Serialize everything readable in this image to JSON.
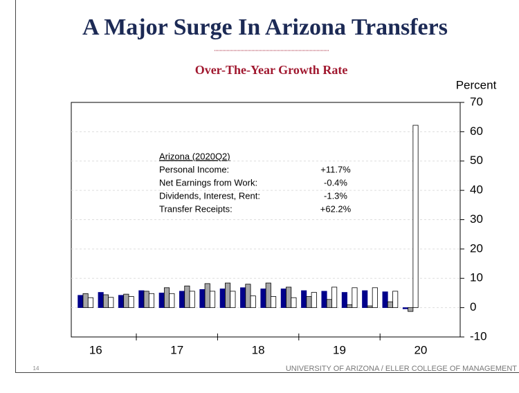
{
  "chart_data": {
    "type": "bar",
    "title": "A Major Surge In Arizona Transfers",
    "subtitle": "Over-The-Year Growth Rate",
    "y_label": "Percent",
    "categories": [
      null,
      null,
      null,
      null,
      null,
      null,
      null,
      null,
      null,
      null,
      null,
      null,
      null,
      null,
      null,
      null,
      null
    ],
    "year_labels": [
      "16",
      "17",
      "18",
      "19",
      "20"
    ],
    "series": [
      {
        "name": "Net Earnings from Work",
        "color": "#00008b",
        "values": [
          4.2,
          5.2,
          4.2,
          5.8,
          5.0,
          5.6,
          6.2,
          6.4,
          6.8,
          6.4,
          6.4,
          5.8,
          5.6,
          5.2,
          5.8,
          5.4,
          -0.4
        ]
      },
      {
        "name": "Dividends, Interest, Rent",
        "color": "#a6a6a6",
        "values": [
          4.8,
          4.4,
          4.6,
          5.6,
          6.8,
          7.4,
          8.2,
          8.4,
          8.0,
          8.4,
          7.0,
          3.8,
          2.8,
          1.0,
          0.6,
          2.0,
          -1.3
        ]
      },
      {
        "name": "Transfer Receipts",
        "color": "#ffffff",
        "values": [
          3.4,
          3.5,
          3.8,
          4.8,
          4.8,
          5.6,
          5.6,
          5.6,
          4.0,
          3.8,
          3.4,
          5.2,
          7.0,
          6.8,
          6.8,
          5.6,
          62.2
        ]
      }
    ],
    "ylim": [
      -10,
      70
    ],
    "yticks": [
      -10,
      0,
      10,
      20,
      30,
      40,
      50,
      60,
      70
    ],
    "grid": true,
    "annotation": {
      "title": "Arizona (2020Q2)",
      "rows": [
        [
          "Personal Income:",
          "+11.7%"
        ],
        [
          "Net Earnings from Work:",
          "-0.4%"
        ],
        [
          "Dividends, Interest, Rent:",
          "-1.3%"
        ],
        [
          "Transfer Receipts:",
          "+62.2%"
        ]
      ]
    }
  },
  "footer": {
    "page": "14",
    "text": "UNIVERSITY OF ARIZONA / ELLER COLLEGE OF MANAGEMENT"
  }
}
